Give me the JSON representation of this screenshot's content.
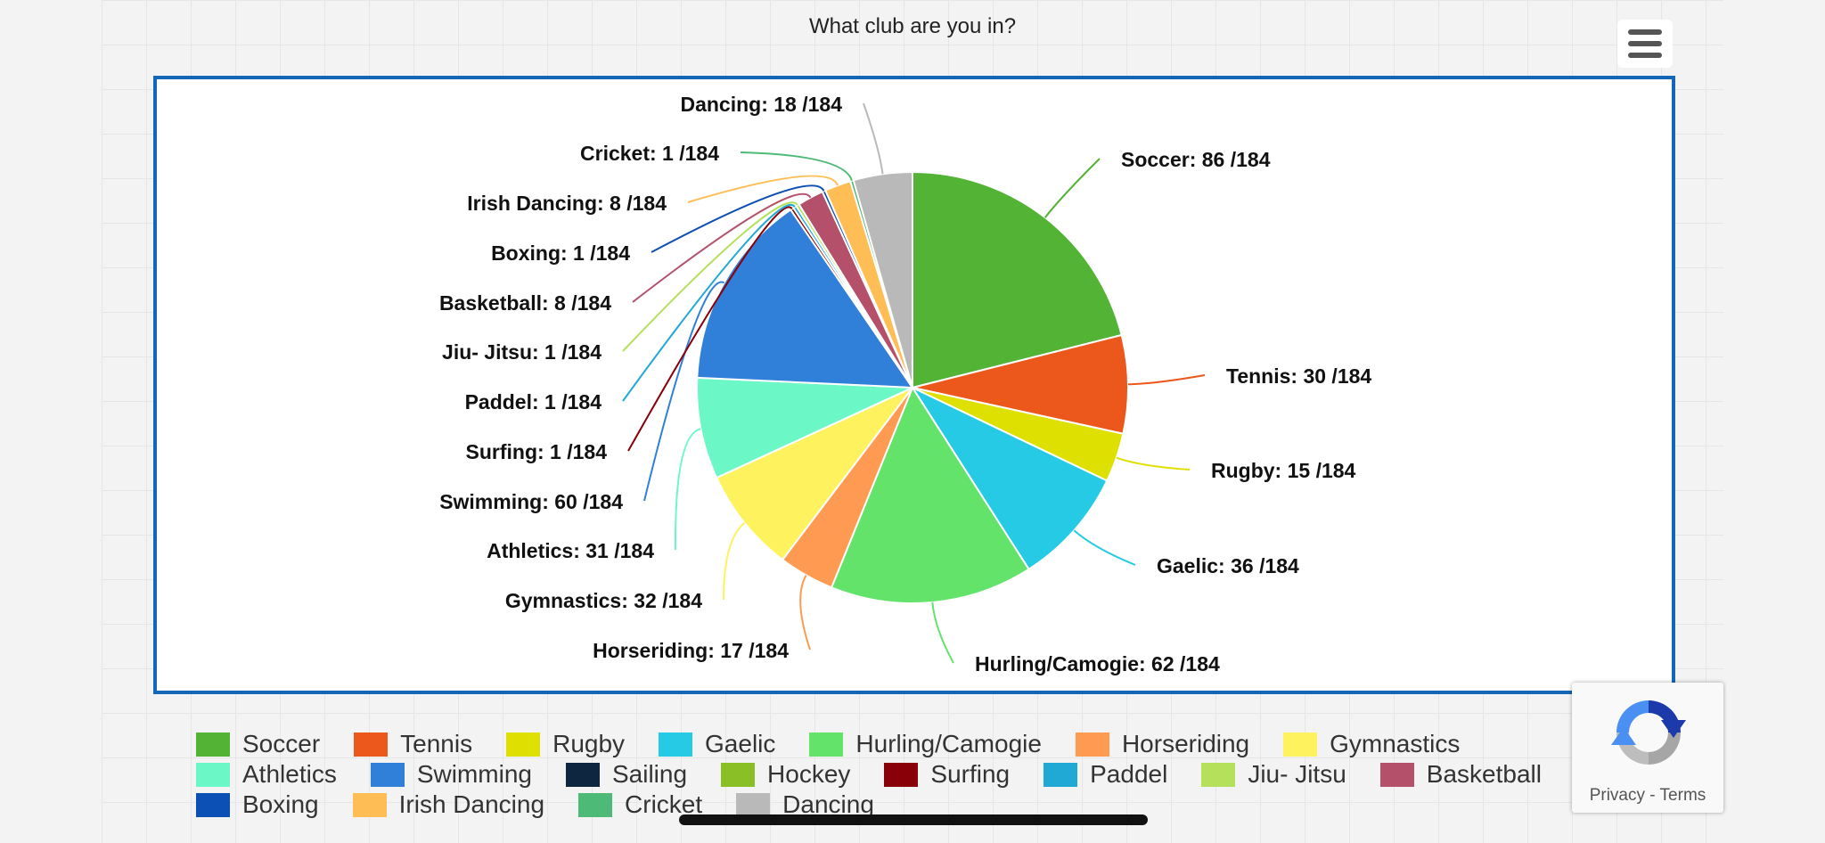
{
  "page": {
    "title": "What club are you in?"
  },
  "chart_data": {
    "type": "pie",
    "title": "What club are you in?",
    "total": 184,
    "slices": [
      {
        "label": "Soccer",
        "value": 86,
        "color": "#52b334",
        "data_label": "Soccer: 86 /184"
      },
      {
        "label": "Tennis",
        "value": 30,
        "color": "#ec571c",
        "data_label": "Tennis: 30 /184"
      },
      {
        "label": "Rugby",
        "value": 15,
        "color": "#dde000",
        "data_label": "Rugby: 15 /184"
      },
      {
        "label": "Gaelic",
        "value": 36,
        "color": "#27cae5",
        "data_label": "Gaelic: 36 /184"
      },
      {
        "label": "Hurling/Camogie",
        "value": 62,
        "color": "#64e36b",
        "data_label": "Hurling/Camogie: 62 /184"
      },
      {
        "label": "Horseriding",
        "value": 17,
        "color": "#ff9a52",
        "data_label": "Horseriding: 17 /184"
      },
      {
        "label": "Gymnastics",
        "value": 32,
        "color": "#fff25f",
        "data_label": "Gymnastics: 32 /184"
      },
      {
        "label": "Athletics",
        "value": 31,
        "color": "#6bf8c6",
        "data_label": "Athletics: 31 /184"
      },
      {
        "label": "Swimming",
        "value": 60,
        "color": "#3080da",
        "data_label": "Swimming: 60 /184"
      },
      {
        "label": "Sailing",
        "value": 0,
        "color": "#0e2640",
        "data_label": ""
      },
      {
        "label": "Hockey",
        "value": 0,
        "color": "#8bbf26",
        "data_label": ""
      },
      {
        "label": "Surfing",
        "value": 1,
        "color": "#8a0009",
        "data_label": "Surfing: 1 /184"
      },
      {
        "label": "Paddel",
        "value": 1,
        "color": "#1fa9d4",
        "data_label": "Paddel: 1 /184"
      },
      {
        "label": "Jiu- Jitsu",
        "value": 1,
        "color": "#b4e05b",
        "data_label": "Jiu- Jitsu: 1 /184"
      },
      {
        "label": "Basketball",
        "value": 8,
        "color": "#b5506b",
        "data_label": "Basketball: 8 /184"
      },
      {
        "label": "Boxing",
        "value": 1,
        "color": "#0c4fb5",
        "data_label": "Boxing: 1 /184"
      },
      {
        "label": "Irish Dancing",
        "value": 8,
        "color": "#ffbe55",
        "data_label": "Irish Dancing: 8 /184"
      },
      {
        "label": "Cricket",
        "value": 1,
        "color": "#4dba78",
        "data_label": "Cricket: 1 /184"
      },
      {
        "label": "Dancing",
        "value": 18,
        "color": "#b9b9b9",
        "data_label": "Dancing: 18 /184"
      }
    ],
    "legend_position": "bottom"
  },
  "legend": {
    "rows": [
      [
        "Soccer",
        "Tennis",
        "Rugby",
        "Gaelic",
        "Hurling/Camogie",
        "Horseriding",
        "Gymnastics"
      ],
      [
        "Athletics",
        "Swimming",
        "Sailing",
        "Hockey",
        "Surfing",
        "Paddel",
        "Jiu- Jitsu",
        "Basketball"
      ],
      [
        "Boxing",
        "Irish Dancing",
        "Cricket",
        "Dancing"
      ]
    ]
  },
  "recaptcha": {
    "privacy_label": "Privacy",
    "separator": " - ",
    "terms_label": "Terms"
  },
  "icons": {
    "menu": "hamburger-menu-icon",
    "recaptcha": "recaptcha-logo-icon"
  }
}
